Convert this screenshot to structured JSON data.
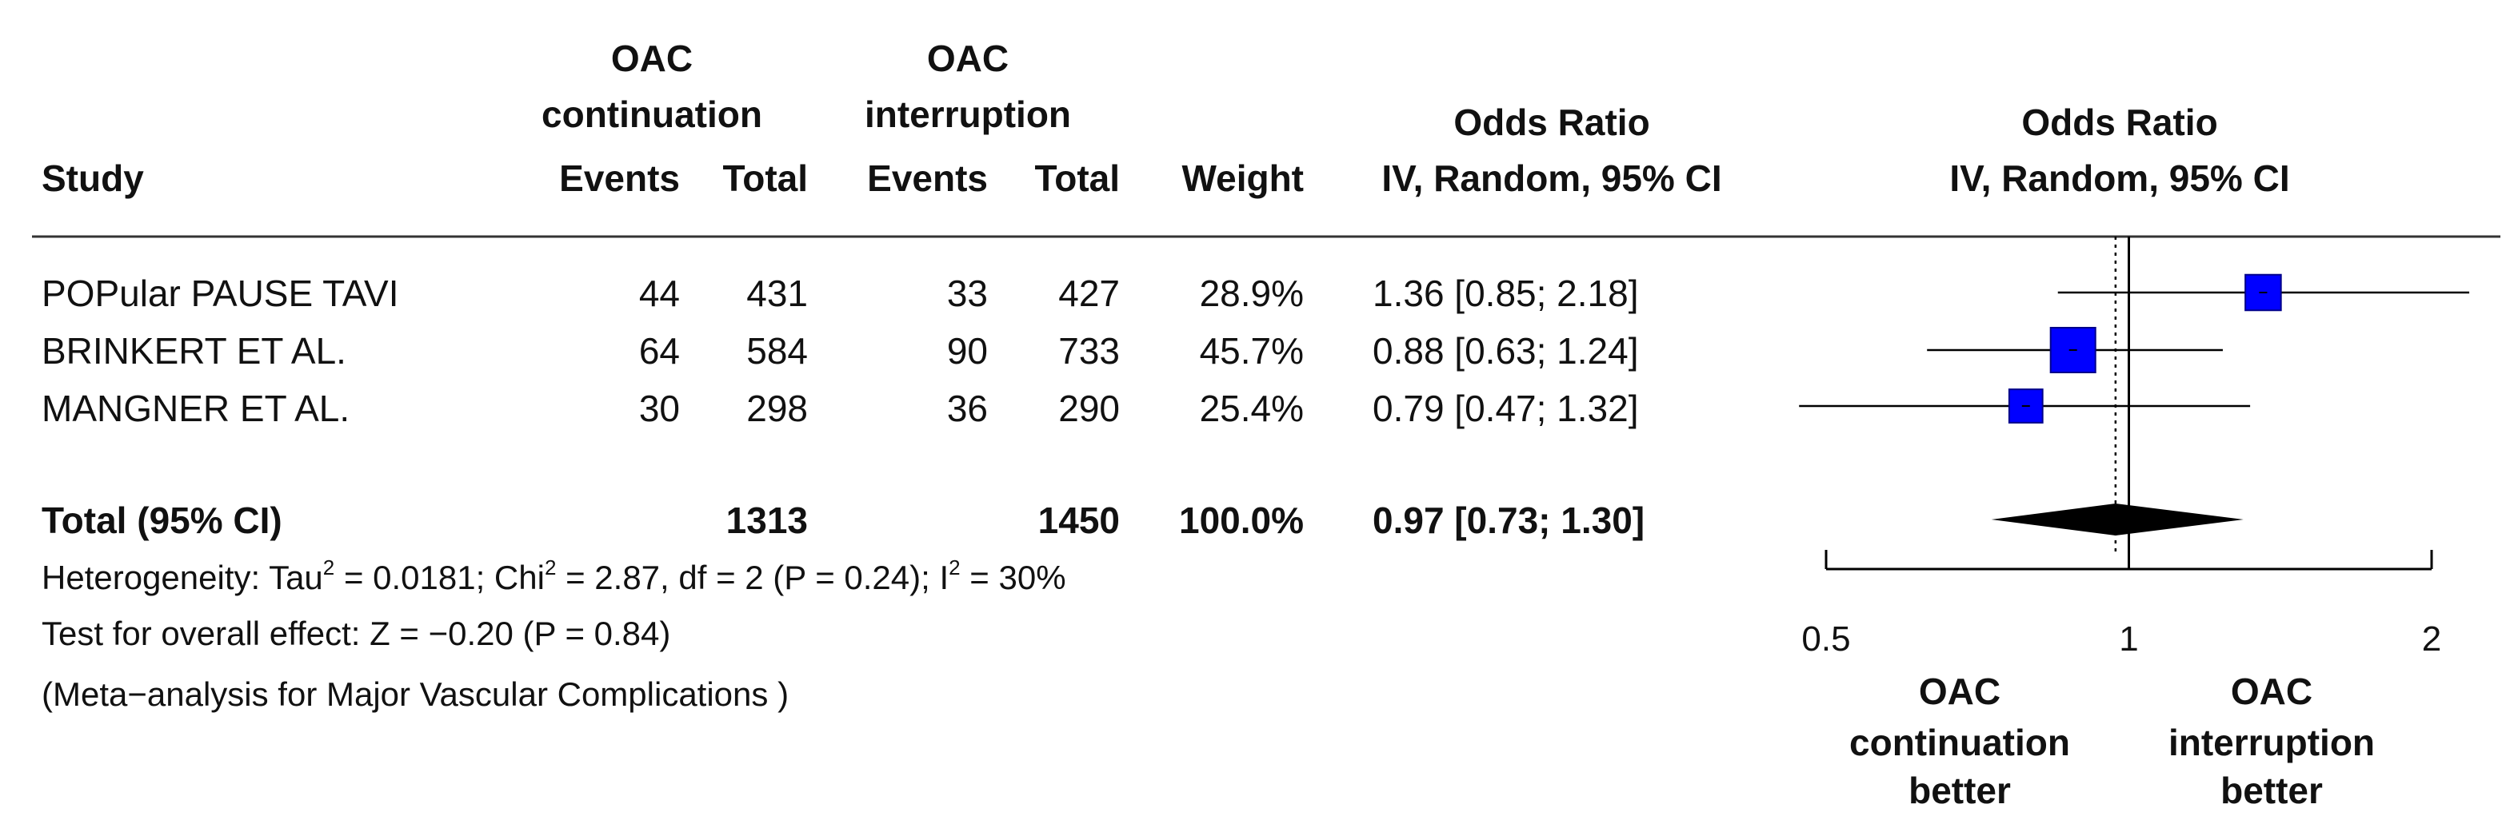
{
  "headers": {
    "study": "Study",
    "group1": [
      "OAC",
      "continuation"
    ],
    "group2": [
      "OAC",
      "interruption"
    ],
    "events": "Events",
    "total": "Total",
    "weight": "Weight",
    "or_title": "Odds Ratio",
    "or_method": "IV, Random, 95% CI",
    "plot_title": "Odds Ratio",
    "plot_method": "IV, Random, 95% CI"
  },
  "studies": [
    {
      "name": "POPular PAUSE TAVI",
      "e1": "44",
      "n1": "431",
      "e2": "33",
      "n2": "427",
      "weight": "28.9%",
      "ci_text": "1.36 [0.85; 2.18]"
    },
    {
      "name": "BRINKERT ET AL.",
      "e1": "64",
      "n1": "584",
      "e2": "90",
      "n2": "733",
      "weight": "45.7%",
      "ci_text": "0.88 [0.63; 1.24]"
    },
    {
      "name": "MANGNER ET AL.",
      "e1": "30",
      "n1": "298",
      "e2": "36",
      "n2": "290",
      "weight": "25.4%",
      "ci_text": "0.79 [0.47; 1.32]"
    }
  ],
  "total": {
    "label": "Total (95% CI)",
    "n1": "1313",
    "n2": "1450",
    "weight": "100.0%",
    "ci_text": "0.97 [0.73; 1.30]"
  },
  "heterogeneity": {
    "prefix": "Heterogeneity: Tau",
    "tau2": "= 0.0181; Chi",
    "chi2": "= 2.87, df = 2 (P = 0.24); I",
    "i2": "= 30%"
  },
  "overall_effect": "Test for overall effect: Z = −0.20 (P = 0.84)",
  "caption": "(Meta−analysis for Major Vascular Complications )",
  "favours_left": [
    "OAC",
    "continuation",
    "better"
  ],
  "favours_right": [
    "OAC",
    "interruption",
    "better"
  ],
  "chart_data": {
    "type": "forest",
    "scale": "log",
    "xlim": [
      0.5,
      2
    ],
    "ticks": [
      0.5,
      1,
      2
    ],
    "tick_labels": [
      "0.5",
      "1",
      "2"
    ],
    "reference_line": 1,
    "studies": [
      {
        "name": "POPular PAUSE TAVI",
        "or": 1.36,
        "lower": 0.85,
        "upper": 2.18,
        "weight": 28.9
      },
      {
        "name": "BRINKERT ET AL.",
        "or": 0.88,
        "lower": 0.63,
        "upper": 1.24,
        "weight": 45.7
      },
      {
        "name": "MANGNER ET AL.",
        "or": 0.79,
        "lower": 0.47,
        "upper": 1.32,
        "weight": 25.4
      }
    ],
    "pooled": {
      "or": 0.97,
      "lower": 0.73,
      "upper": 1.3
    },
    "colors": {
      "box": "#0000ff",
      "line": "#000000",
      "diamond": "#000000"
    }
  }
}
